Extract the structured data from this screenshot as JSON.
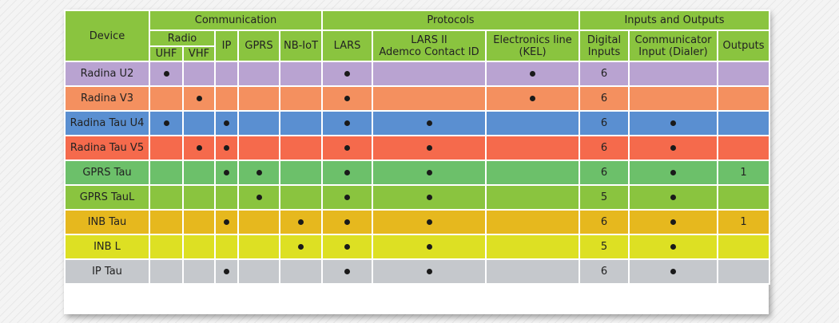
{
  "header": {
    "device": "Device",
    "communication": "Communication",
    "protocols": "Protocols",
    "inputs_outputs": "Inputs and Outputs",
    "radio": "Radio",
    "uhf": "UHF",
    "vhf": "VHF",
    "ip": "IP",
    "gprs": "GPRS",
    "nbiot": "NB-IoT",
    "lars": "LARS",
    "lars2_line1": "LARS II",
    "lars2_line2": "Ademco Contact ID",
    "kel_line1": "Electronics line",
    "kel_line2": "(KEL)",
    "digital_line1": "Digital",
    "digital_line2": "Inputs",
    "dialer_line1": "Communicator",
    "dialer_line2": "Input (Dialer)",
    "outputs": "Outputs"
  },
  "colors": {
    "header": "#8ac43f",
    "radina_u2": "#b9a3d1",
    "radina_v3": "#f4905f",
    "radina_tau_u4": "#5a8fd1",
    "radina_tau_v5": "#f56a4c",
    "gprs_tau": "#6cc06a",
    "gprs_taul": "#8ac43f",
    "inb_tau": "#e6b81e",
    "inb_l": "#dde023",
    "ip_tau": "#c5c8cc"
  },
  "rows": [
    {
      "device": "Radina U2",
      "color": "#b9a3d1",
      "uhf": true,
      "vhf": false,
      "ip": false,
      "gprs": false,
      "nbiot": false,
      "lars": true,
      "lars2": false,
      "kel": true,
      "digital": "6",
      "dialer": false,
      "outputs": ""
    },
    {
      "device": "Radina V3",
      "color": "#f4905f",
      "uhf": false,
      "vhf": true,
      "ip": false,
      "gprs": false,
      "nbiot": false,
      "lars": true,
      "lars2": false,
      "kel": true,
      "digital": "6",
      "dialer": false,
      "outputs": ""
    },
    {
      "device": "Radina Tau U4",
      "color": "#5a8fd1",
      "uhf": true,
      "vhf": false,
      "ip": true,
      "gprs": false,
      "nbiot": false,
      "lars": true,
      "lars2": true,
      "kel": false,
      "digital": "6",
      "dialer": true,
      "outputs": ""
    },
    {
      "device": "Radina Tau V5",
      "color": "#f56a4c",
      "uhf": false,
      "vhf": true,
      "ip": true,
      "gprs": false,
      "nbiot": false,
      "lars": true,
      "lars2": true,
      "kel": false,
      "digital": "6",
      "dialer": true,
      "outputs": ""
    },
    {
      "device": "GPRS Tau",
      "color": "#6cc06a",
      "uhf": false,
      "vhf": false,
      "ip": true,
      "gprs": true,
      "nbiot": false,
      "lars": true,
      "lars2": true,
      "kel": false,
      "digital": "6",
      "dialer": true,
      "outputs": "1"
    },
    {
      "device": "GPRS TauL",
      "color": "#8ac43f",
      "uhf": false,
      "vhf": false,
      "ip": false,
      "gprs": true,
      "nbiot": false,
      "lars": true,
      "lars2": true,
      "kel": false,
      "digital": "5",
      "dialer": true,
      "outputs": ""
    },
    {
      "device": "INB Tau",
      "color": "#e6b81e",
      "uhf": false,
      "vhf": false,
      "ip": true,
      "gprs": false,
      "nbiot": true,
      "lars": true,
      "lars2": true,
      "kel": false,
      "digital": "6",
      "dialer": true,
      "outputs": "1"
    },
    {
      "device": "INB L",
      "color": "#dde023",
      "uhf": false,
      "vhf": false,
      "ip": false,
      "gprs": false,
      "nbiot": true,
      "lars": true,
      "lars2": true,
      "kel": false,
      "digital": "5",
      "dialer": true,
      "outputs": ""
    },
    {
      "device": "IP Tau",
      "color": "#c5c8cc",
      "uhf": false,
      "vhf": false,
      "ip": true,
      "gprs": false,
      "nbiot": false,
      "lars": true,
      "lars2": true,
      "kel": false,
      "digital": "6",
      "dialer": true,
      "outputs": ""
    }
  ]
}
